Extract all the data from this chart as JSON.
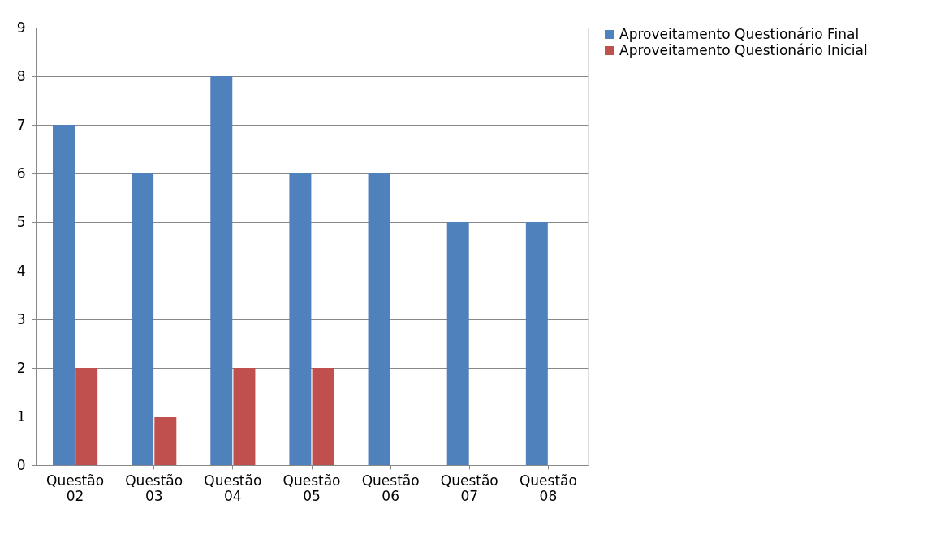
{
  "chart_data": {
    "type": "bar",
    "categories": [
      "Questão 02",
      "Questão 03",
      "Questão 04",
      "Questão 05",
      "Questão 06",
      "Questão 07",
      "Questão 08"
    ],
    "series": [
      {
        "name": "Aproveitamento Questionário Final",
        "color": "#4f81bd",
        "values": [
          7,
          6,
          8,
          6,
          6,
          5,
          5
        ]
      },
      {
        "name": "Aproveitamento Questionário Inicial",
        "color": "#c0504d",
        "values": [
          2,
          1,
          2,
          2,
          0,
          0,
          0
        ]
      }
    ],
    "ylim": [
      0,
      9
    ],
    "yticks": [
      0,
      1,
      2,
      3,
      4,
      5,
      6,
      7,
      8,
      9
    ],
    "grid": "y",
    "legend": "right"
  }
}
